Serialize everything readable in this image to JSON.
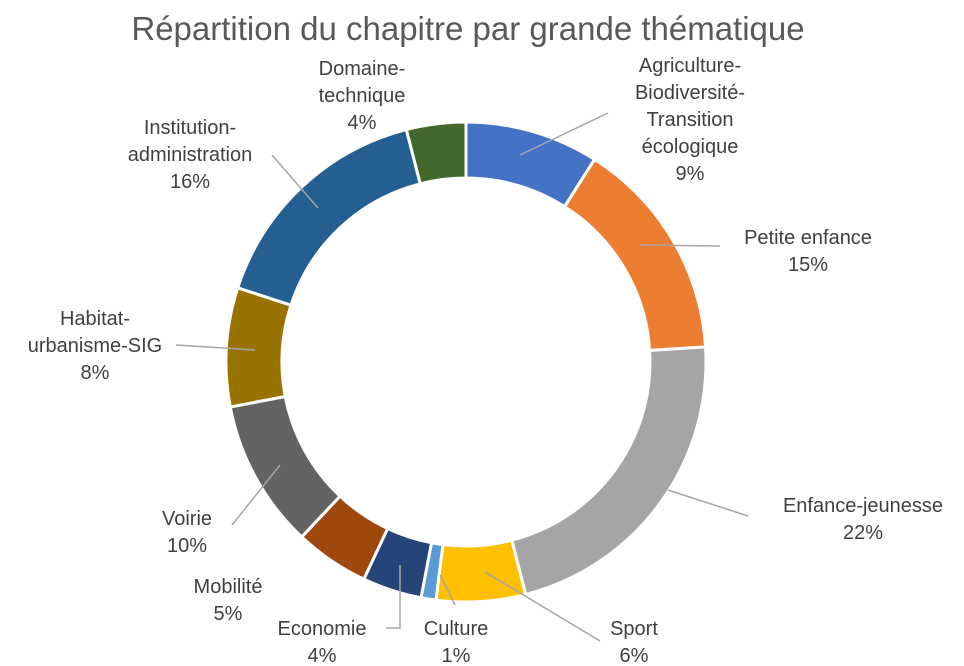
{
  "chart_data": {
    "type": "donut",
    "title": "Répartition du chapitre par grande thématique",
    "categories": [
      [
        "Agriculture-",
        "Biodiversité-",
        "Transition",
        "écologique"
      ],
      [
        "Petite enfance"
      ],
      [
        "Enfance-jeunesse"
      ],
      [
        "Sport"
      ],
      [
        "Culture"
      ],
      [
        "Economie"
      ],
      [
        "Mobilité"
      ],
      [
        "Voirie"
      ],
      [
        "Habitat-",
        "urbanisme-SIG"
      ],
      [
        "Institution-",
        "administration"
      ],
      [
        "Domaine-",
        "technique"
      ]
    ],
    "values": [
      9,
      15,
      22,
      6,
      1,
      4,
      5,
      10,
      8,
      16,
      4
    ],
    "value_labels": [
      "9%",
      "15%",
      "22%",
      "6%",
      "1%",
      "4%",
      "5%",
      "10%",
      "8%",
      "16%",
      "4%"
    ],
    "colors": [
      "#4472C4",
      "#ED7D31",
      "#A5A5A5",
      "#FFC000",
      "#5B9BD5",
      "#264478",
      "#9E480E",
      "#636363",
      "#997300",
      "#255E91",
      "#43682B"
    ]
  }
}
